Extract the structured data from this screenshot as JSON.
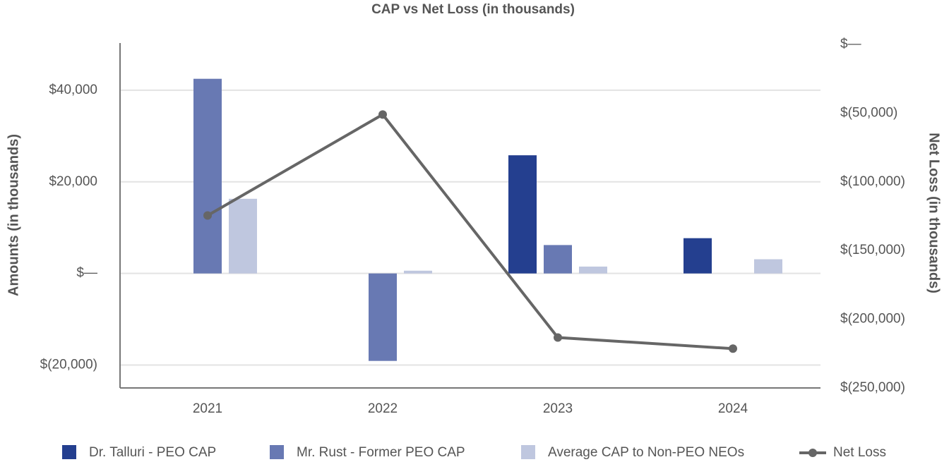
{
  "chart_data": {
    "type": "bar-line",
    "title": "CAP vs Net Loss (in thousands)",
    "y_label": "Amounts (in thousands)",
    "y2_label": "Net Loss (in thousands)",
    "categories": [
      "2021",
      "2022",
      "2023",
      "2024"
    ],
    "series": [
      {
        "name": "Dr. Talluri - PEO CAP",
        "type": "bar",
        "color": "#243f8f",
        "values": [
          null,
          null,
          25800,
          7700
        ]
      },
      {
        "name": "Mr. Rust - Former PEO CAP",
        "type": "bar",
        "color": "#6879b3",
        "values": [
          42500,
          -19100,
          6200,
          null
        ]
      },
      {
        "name": "Average CAP to Non-PEO NEOs",
        "type": "bar",
        "color": "#bfc7df",
        "values": [
          16300,
          600,
          1500,
          3100
        ]
      },
      {
        "name": "Net Loss",
        "type": "line",
        "axis": "y2",
        "color": "#666666",
        "values": [
          -124500,
          -51000,
          -213300,
          -221400
        ]
      }
    ],
    "ylim": [
      -25000,
      50000
    ],
    "yticks": [
      {
        "value": 40000,
        "label": "$40,000"
      },
      {
        "value": 20000,
        "label": "$20,000"
      },
      {
        "value": 0,
        "label": "$—"
      },
      {
        "value": -20000,
        "label": "$(20,000)"
      }
    ],
    "y2lim": [
      -250000,
      0
    ],
    "y2ticks": [
      {
        "value": 0,
        "label": "$—"
      },
      {
        "value": -50000,
        "label": "$(50,000)"
      },
      {
        "value": -100000,
        "label": "$(100,000)"
      },
      {
        "value": -150000,
        "label": "$(150,000)"
      },
      {
        "value": -200000,
        "label": "$(200,000)"
      },
      {
        "value": -250000,
        "label": "$(250,000)"
      }
    ],
    "grid": true,
    "legend": "bottom"
  }
}
